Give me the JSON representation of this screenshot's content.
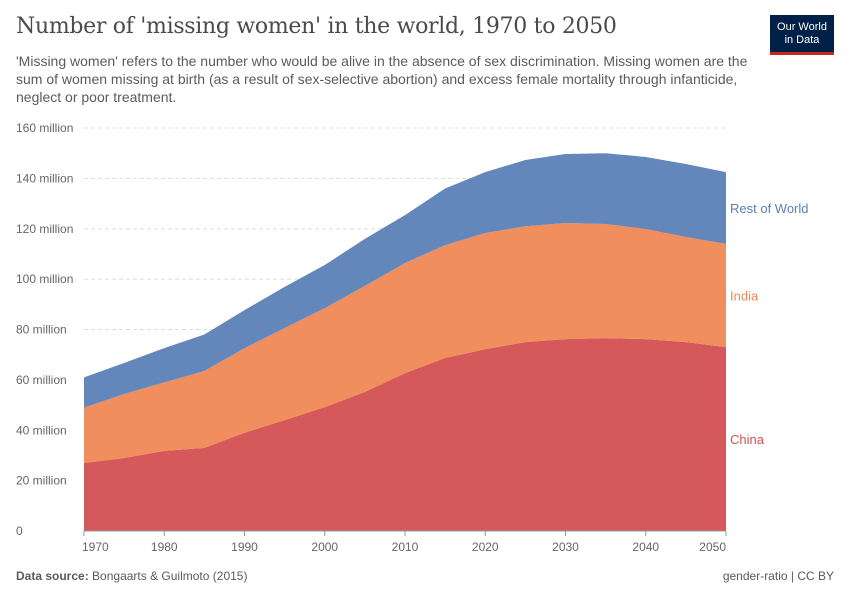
{
  "header": {
    "title": "Number of 'missing women' in the world, 1970 to 2050",
    "subtitle": "'Missing women' refers to the number who would be alive in the absence of sex discrimination. Missing women are the sum of women missing at birth (as a result of sex-selective abortion) and excess female mortality through infanticide, neglect or poor treatment.",
    "logo": [
      "Our World",
      "in Data"
    ]
  },
  "footer": {
    "source_label": "Data source:",
    "source": "Bongaarts & Guilmoto (2015)",
    "right": "gender-ratio | CC BY"
  },
  "chart_data": {
    "type": "area",
    "stacked": true,
    "title": "Number of 'missing women' in the world, 1970 to 2050",
    "xlabel": "",
    "ylabel": "",
    "x": [
      1970,
      1975,
      1980,
      1985,
      1990,
      1995,
      2000,
      2005,
      2010,
      2015,
      2020,
      2025,
      2030,
      2035,
      2040,
      2045,
      2050
    ],
    "xlim": [
      1970,
      2050
    ],
    "ylim": [
      0,
      160000000
    ],
    "x_ticks": [
      "1970",
      "1980",
      "1990",
      "2000",
      "2010",
      "2020",
      "2030",
      "2040",
      "2050"
    ],
    "y_ticks": [
      "0",
      "20 million",
      "40 million",
      "60 million",
      "80 million",
      "100 million",
      "120 million",
      "140 million",
      "160 million"
    ],
    "grid": "horizontal dashed",
    "legend": "inline-right",
    "series": [
      {
        "name": "China",
        "color": "#d35052",
        "values": [
          27,
          29,
          31.8,
          33,
          39,
          44,
          49.2,
          55.2,
          62.7,
          68.7,
          72.2,
          75,
          76.2,
          76.6,
          76.2,
          75,
          73
        ]
      },
      {
        "name": "India",
        "color": "#ef8854",
        "values": [
          22,
          25.4,
          27.2,
          30.5,
          33.6,
          36.6,
          39.3,
          42.1,
          43.7,
          44.8,
          46.1,
          46,
          46.1,
          45.3,
          43.7,
          41.7,
          41
        ]
      },
      {
        "name": "Rest of World",
        "color": "#5b80b7",
        "values": [
          12,
          12.3,
          13.6,
          14.5,
          15.1,
          16.3,
          17.1,
          18.7,
          19,
          22.5,
          24.2,
          26.3,
          27.4,
          28.1,
          28.6,
          29,
          28.5
        ]
      }
    ],
    "units": "million"
  }
}
